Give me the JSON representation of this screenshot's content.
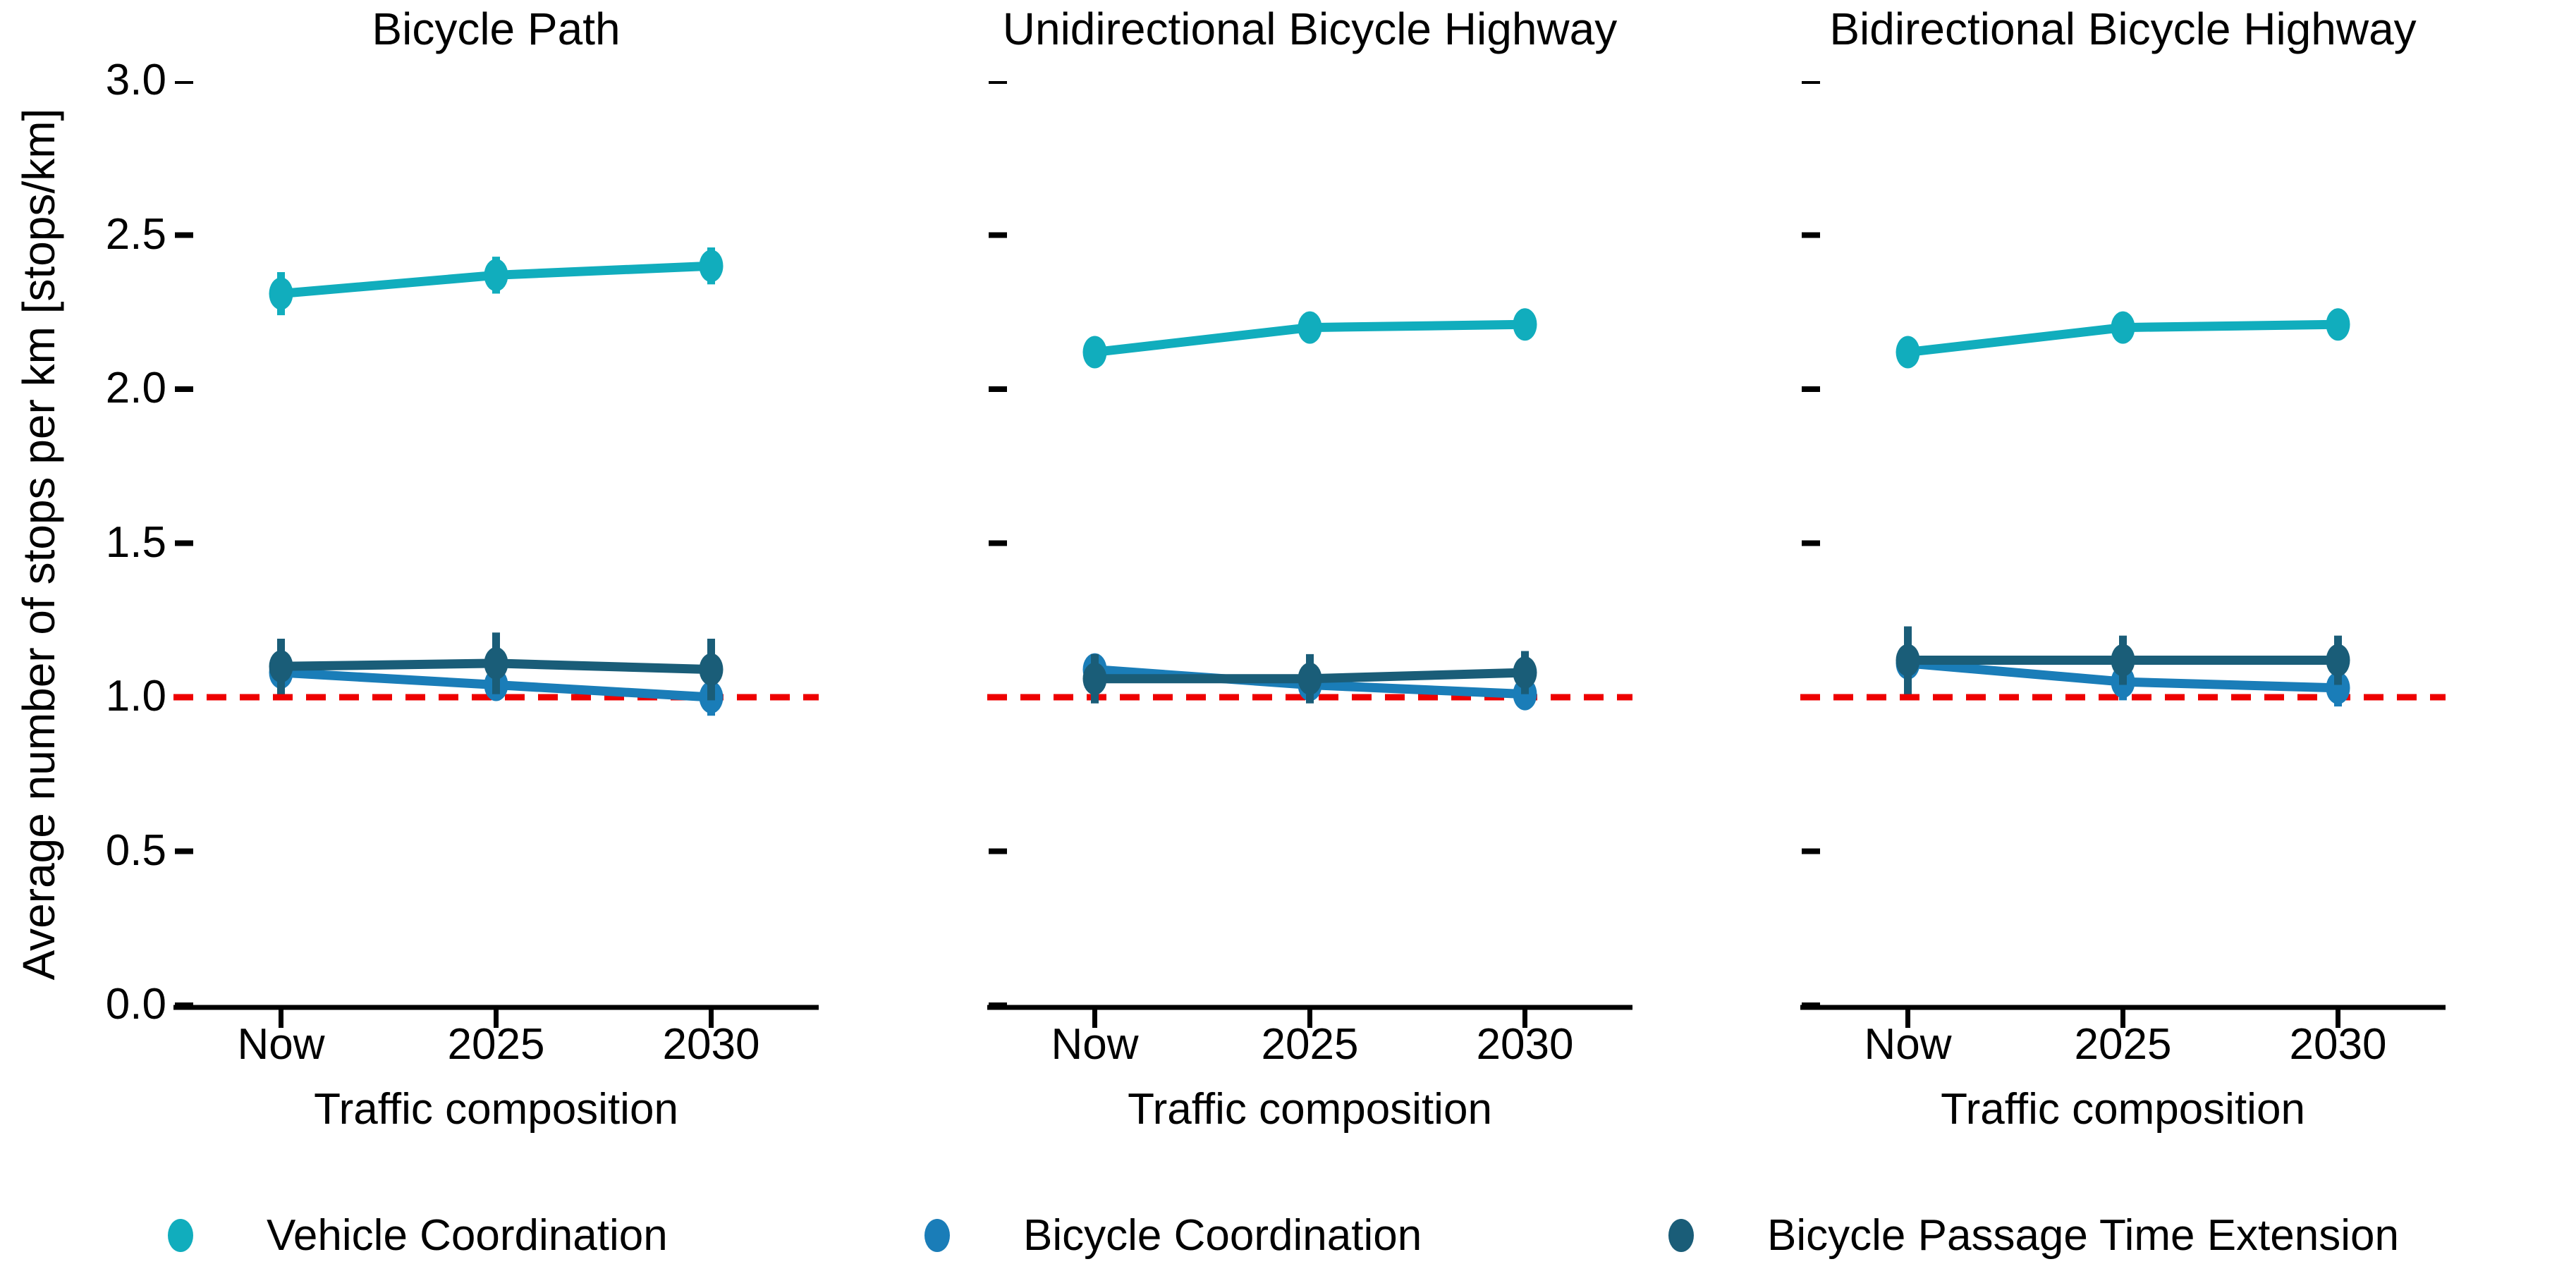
{
  "figure": {
    "ylabel": "Average number of stops per km [stops/km]",
    "xlabel": "Traffic composition",
    "x_categories": [
      "Now",
      "2025",
      "2030"
    ],
    "y_ticks": [
      {
        "label": "3.0",
        "value": 3.0
      },
      {
        "label": "2.5",
        "value": 2.5
      },
      {
        "label": "2.0",
        "value": 2.0
      },
      {
        "label": "1.5",
        "value": 1.5
      },
      {
        "label": "1.0",
        "value": 1.0
      },
      {
        "label": "0.5",
        "value": 0.5
      },
      {
        "label": "0.0",
        "value": 0.0
      }
    ],
    "reference_line": {
      "y": 1.0,
      "color": "#ee0000",
      "style": "dashed"
    },
    "axis_color": "#000000",
    "background": "#ffffff"
  },
  "legend": {
    "items": [
      {
        "label": "Vehicle Coordination",
        "color": "#11adbd"
      },
      {
        "label": "Bicycle Coordination",
        "color": "#1a7db8"
      },
      {
        "label": "Bicycle Passage Time Extension",
        "color": "#1a5d78"
      }
    ]
  },
  "chart_data": [
    {
      "type": "line",
      "title": "Bicycle Path",
      "x": [
        "Now",
        "2025",
        "2030"
      ],
      "xlabel": "Traffic composition",
      "ylim": [
        0,
        3
      ],
      "reference_line_y": 1.0,
      "series": [
        {
          "name": "Vehicle Coordination",
          "color": "#11adbd",
          "values": [
            2.31,
            2.37,
            2.4
          ],
          "errors": [
            0.07,
            0.06,
            0.06
          ]
        },
        {
          "name": "Bicycle Coordination",
          "color": "#1a7db8",
          "values": [
            1.08,
            1.04,
            1.0
          ],
          "errors": [
            0.05,
            0.05,
            0.06
          ]
        },
        {
          "name": "Bicycle Passage Time Extension",
          "color": "#1a5d78",
          "values": [
            1.1,
            1.11,
            1.09
          ],
          "errors": [
            0.09,
            0.1,
            0.1
          ]
        }
      ]
    },
    {
      "type": "line",
      "title": "Unidirectional Bicycle Highway",
      "x": [
        "Now",
        "2025",
        "2030"
      ],
      "xlabel": "Traffic composition",
      "ylim": [
        0,
        3
      ],
      "reference_line_y": 1.0,
      "series": [
        {
          "name": "Vehicle Coordination",
          "color": "#11adbd",
          "values": [
            2.12,
            2.2,
            2.21
          ],
          "errors": [
            0.05,
            0.05,
            0.05
          ]
        },
        {
          "name": "Bicycle Coordination",
          "color": "#1a7db8",
          "values": [
            1.09,
            1.04,
            1.01
          ],
          "errors": [
            0.05,
            0.05,
            0.05
          ]
        },
        {
          "name": "Bicycle Passage Time Extension",
          "color": "#1a5d78",
          "values": [
            1.06,
            1.06,
            1.08
          ],
          "errors": [
            0.08,
            0.08,
            0.07
          ]
        }
      ]
    },
    {
      "type": "line",
      "title": "Bidirectional Bicycle Highway",
      "x": [
        "Now",
        "2025",
        "2030"
      ],
      "xlabel": "Traffic composition",
      "ylim": [
        0,
        3
      ],
      "reference_line_y": 1.0,
      "series": [
        {
          "name": "Vehicle Coordination",
          "color": "#11adbd",
          "values": [
            2.12,
            2.2,
            2.21
          ],
          "errors": [
            0.04,
            0.05,
            0.05
          ]
        },
        {
          "name": "Bicycle Coordination",
          "color": "#1a7db8",
          "values": [
            1.11,
            1.05,
            1.03
          ],
          "errors": [
            0.06,
            0.06,
            0.06
          ]
        },
        {
          "name": "Bicycle Passage Time Extension",
          "color": "#1a5d78",
          "values": [
            1.12,
            1.12,
            1.12
          ],
          "errors": [
            0.11,
            0.08,
            0.08
          ]
        }
      ]
    }
  ]
}
